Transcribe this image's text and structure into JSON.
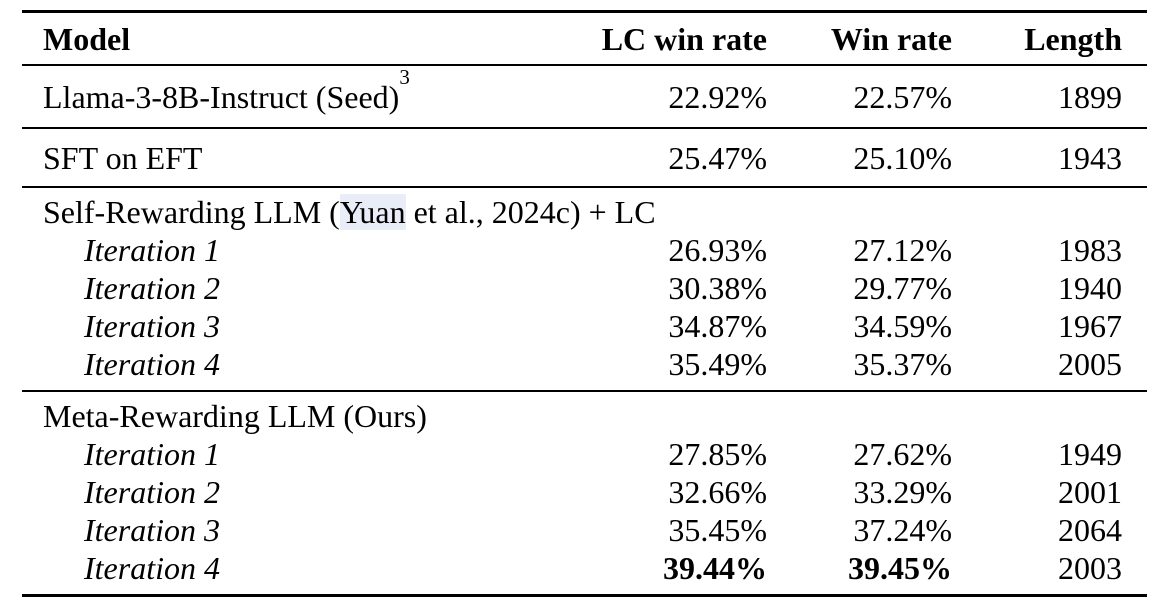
{
  "table": {
    "columns": {
      "model": "Model",
      "lc_win_rate": "LC win rate",
      "win_rate": "Win rate",
      "length": "Length"
    },
    "baseline_row": {
      "model": "Llama-3-8B-Instruct (Seed)",
      "footnote_marker": "3",
      "lc_win_rate": "22.92%",
      "win_rate": "22.57%",
      "length": "1899"
    },
    "sft_row": {
      "model": "SFT on EFT",
      "lc_win_rate": "25.47%",
      "win_rate": "25.10%",
      "length": "1943"
    },
    "self_rewarding_section": {
      "title_prefix": "Self-Rewarding LLM (",
      "citation_link": "Yuan",
      "title_suffix": " et al., 2024c) + LC",
      "rows": [
        {
          "label": "Iteration 1",
          "lc_win_rate": "26.93%",
          "win_rate": "27.12%",
          "length": "1983"
        },
        {
          "label": "Iteration 2",
          "lc_win_rate": "30.38%",
          "win_rate": "29.77%",
          "length": "1940"
        },
        {
          "label": "Iteration 3",
          "lc_win_rate": "34.87%",
          "win_rate": "34.59%",
          "length": "1967"
        },
        {
          "label": "Iteration 4",
          "lc_win_rate": "35.49%",
          "win_rate": "35.37%",
          "length": "2005"
        }
      ]
    },
    "meta_rewarding_section": {
      "title": "Meta-Rewarding LLM (Ours)",
      "rows": [
        {
          "label": "Iteration 1",
          "lc_win_rate": "27.85%",
          "win_rate": "27.62%",
          "length": "1949"
        },
        {
          "label": "Iteration 2",
          "lc_win_rate": "32.66%",
          "win_rate": "33.29%",
          "length": "2001"
        },
        {
          "label": "Iteration 3",
          "lc_win_rate": "35.45%",
          "win_rate": "37.24%",
          "length": "2064"
        },
        {
          "label": "Iteration 4",
          "lc_win_rate": "39.44%",
          "win_rate": "39.45%",
          "length": "2003"
        }
      ]
    },
    "colors": {
      "text": "#000000",
      "rule": "#000000",
      "citation_link_highlight": "#e9edf8"
    }
  }
}
